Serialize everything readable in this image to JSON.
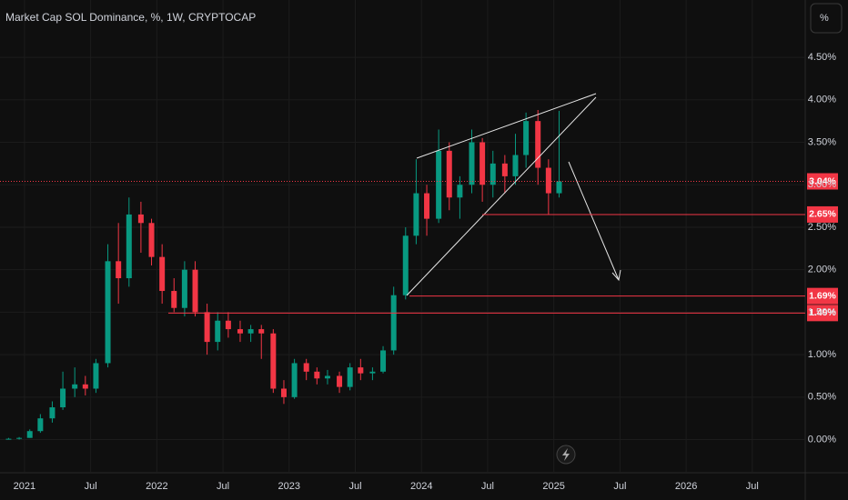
{
  "chart_data": {
    "type": "candlestick",
    "title": "Market Cap SOL Dominance, %, 1W, CRYPTOCAP",
    "unit_button": "%",
    "colors": {
      "up": "#089981",
      "down": "#f23645"
    },
    "x": [
      2020.88,
      2020.96,
      2021.04,
      2021.12,
      2021.21,
      2021.29,
      2021.38,
      2021.46,
      2021.54,
      2021.63,
      2021.71,
      2021.79,
      2021.88,
      2021.96,
      2022.04,
      2022.13,
      2022.21,
      2022.29,
      2022.38,
      2022.46,
      2022.54,
      2022.63,
      2022.71,
      2022.79,
      2022.88,
      2022.96,
      2023.04,
      2023.13,
      2023.21,
      2023.29,
      2023.38,
      2023.46,
      2023.54,
      2023.63,
      2023.71,
      2023.79,
      2023.88,
      2023.96,
      2024.04,
      2024.13,
      2024.21,
      2024.29,
      2024.38,
      2024.46,
      2024.54,
      2024.63,
      2024.71,
      2024.79,
      2024.88,
      2024.96,
      2025.04
    ],
    "open": [
      0.01,
      0.01,
      0.02,
      0.1,
      0.25,
      0.38,
      0.6,
      0.65,
      0.6,
      0.9,
      2.1,
      1.9,
      2.65,
      2.55,
      2.15,
      1.75,
      1.55,
      2.0,
      1.5,
      1.15,
      1.4,
      1.3,
      1.25,
      1.3,
      1.25,
      0.6,
      0.5,
      0.9,
      0.8,
      0.72,
      0.75,
      0.62,
      0.85,
      0.78,
      0.8,
      1.05,
      1.7,
      2.4,
      2.9,
      2.6,
      3.4,
      2.85,
      3.0,
      3.5,
      3.0,
      3.25,
      3.1,
      3.35,
      3.75,
      3.2,
      2.9
    ],
    "high": [
      0.02,
      0.03,
      0.12,
      0.3,
      0.45,
      0.8,
      0.85,
      0.75,
      0.95,
      2.3,
      2.55,
      2.85,
      2.8,
      2.6,
      2.3,
      1.9,
      2.1,
      2.1,
      1.6,
      1.5,
      1.5,
      1.4,
      1.35,
      1.35,
      1.3,
      0.7,
      0.95,
      0.95,
      0.85,
      0.82,
      0.8,
      0.9,
      0.95,
      0.85,
      1.1,
      1.8,
      2.5,
      3.3,
      3.0,
      3.65,
      3.5,
      3.1,
      3.65,
      3.55,
      3.4,
      3.35,
      3.6,
      3.85,
      3.88,
      3.3,
      3.87
    ],
    "low": [
      0.0,
      0.0,
      0.02,
      0.08,
      0.2,
      0.35,
      0.5,
      0.52,
      0.55,
      0.85,
      1.6,
      1.8,
      2.2,
      2.05,
      1.6,
      1.5,
      1.45,
      1.45,
      1.0,
      1.05,
      1.2,
      1.15,
      1.15,
      0.95,
      0.55,
      0.42,
      0.48,
      0.7,
      0.65,
      0.65,
      0.55,
      0.58,
      0.7,
      0.7,
      0.78,
      1.0,
      1.65,
      2.3,
      2.4,
      2.55,
      2.7,
      2.6,
      2.9,
      2.8,
      2.85,
      2.9,
      3.0,
      3.2,
      3.0,
      2.65,
      2.85
    ],
    "close": [
      0.01,
      0.02,
      0.1,
      0.25,
      0.38,
      0.6,
      0.65,
      0.6,
      0.9,
      2.1,
      1.9,
      2.65,
      2.55,
      2.15,
      1.75,
      1.55,
      2.0,
      1.5,
      1.15,
      1.4,
      1.3,
      1.25,
      1.3,
      1.25,
      0.6,
      0.5,
      0.9,
      0.8,
      0.72,
      0.75,
      0.62,
      0.85,
      0.78,
      0.8,
      1.05,
      1.7,
      2.4,
      2.9,
      2.6,
      3.4,
      2.85,
      3.0,
      3.5,
      3.0,
      3.25,
      3.1,
      3.35,
      3.75,
      3.2,
      2.9,
      3.04
    ],
    "xlim": [
      2020.815,
      2026.9
    ],
    "xticks": [
      {
        "value": 2021,
        "label": "2021"
      },
      {
        "value": 2021.5,
        "label": "Jul"
      },
      {
        "value": 2022,
        "label": "2022"
      },
      {
        "value": 2022.5,
        "label": "Jul"
      },
      {
        "value": 2023,
        "label": "2023"
      },
      {
        "value": 2023.5,
        "label": "Jul"
      },
      {
        "value": 2024,
        "label": "2024"
      },
      {
        "value": 2024.5,
        "label": "Jul"
      },
      {
        "value": 2025,
        "label": "2025"
      },
      {
        "value": 2025.5,
        "label": "Jul"
      },
      {
        "value": 2026,
        "label": "2026"
      },
      {
        "value": 2026.5,
        "label": "Jul"
      }
    ],
    "ylim": [
      -0.39,
      5.175
    ],
    "yticks": [
      {
        "value": 0,
        "label": "0.00%"
      },
      {
        "value": 0.5,
        "label": "0.50%"
      },
      {
        "value": 1,
        "label": "1.00%"
      },
      {
        "value": 1.5,
        "label": "1.50%"
      },
      {
        "value": 2,
        "label": "2.00%"
      },
      {
        "value": 2.5,
        "label": "2.50%"
      },
      {
        "value": 3,
        "label": "3.00%"
      },
      {
        "value": 3.5,
        "label": "3.50%"
      },
      {
        "value": 4,
        "label": "4.00%"
      },
      {
        "value": 4.5,
        "label": "4.50%"
      }
    ],
    "current": {
      "value": 3.04,
      "label": "3.04%"
    },
    "levels": [
      {
        "value": 2.65,
        "label": "2.65%"
      },
      {
        "value": 1.69,
        "label": "1.69%"
      },
      {
        "value": 1.49,
        "label": "1.49%"
      }
    ],
    "grid": true
  }
}
